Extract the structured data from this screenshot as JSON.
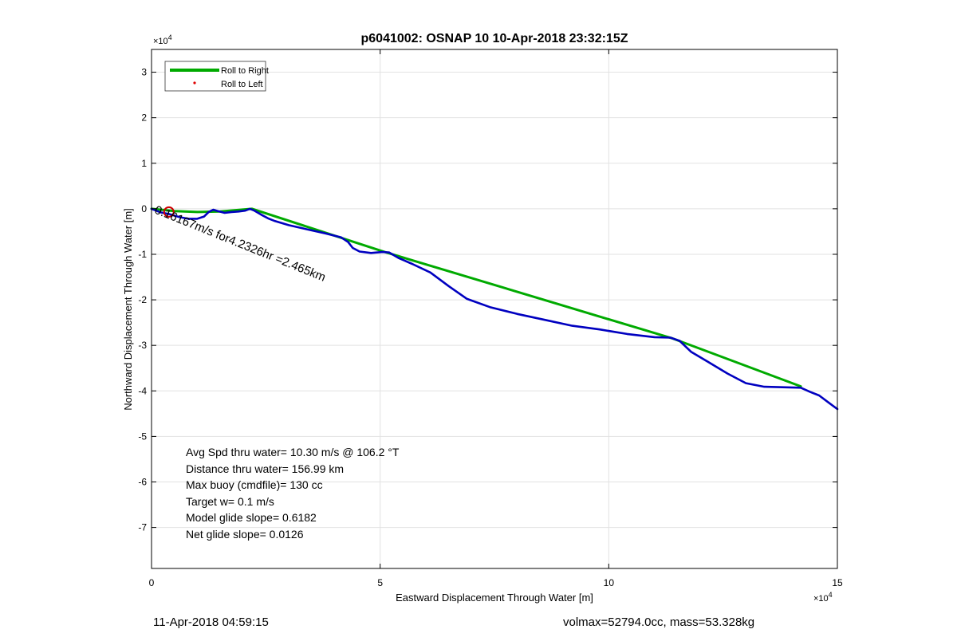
{
  "chart_data": {
    "type": "line",
    "title": "p6041002: OSNAP 10 10-Apr-2018 23:32:15Z",
    "xlabel": "Eastward Displacement Through Water [m]",
    "ylabel": "Northward Displacement Through Water [m]",
    "xlim": [
      0,
      150000
    ],
    "ylim": [
      -79000,
      35000
    ],
    "x_exponent_label": "×10",
    "x_exponent_power": "4",
    "y_exponent_label": "×10",
    "y_exponent_power": "4",
    "x_ticks": [
      {
        "value": 0,
        "label": "0"
      },
      {
        "value": 50000,
        "label": "5"
      },
      {
        "value": 100000,
        "label": "10"
      },
      {
        "value": 150000,
        "label": "15"
      }
    ],
    "y_ticks": [
      {
        "value": 30000,
        "label": "3"
      },
      {
        "value": 20000,
        "label": "2"
      },
      {
        "value": 10000,
        "label": "1"
      },
      {
        "value": 0,
        "label": "0"
      },
      {
        "value": -10000,
        "label": "-1"
      },
      {
        "value": -20000,
        "label": "-2"
      },
      {
        "value": -30000,
        "label": "-3"
      },
      {
        "value": -40000,
        "label": "-4"
      },
      {
        "value": -50000,
        "label": "-5"
      },
      {
        "value": -60000,
        "label": "-6"
      },
      {
        "value": -70000,
        "label": "-7"
      }
    ],
    "grid": true,
    "legend_position": "top-left",
    "legend": [
      {
        "label": "Roll to Right",
        "color": "#00aa00",
        "marker": "line"
      },
      {
        "label": "Roll to Left",
        "color": "#e00000",
        "marker": "dot"
      }
    ],
    "series": [
      {
        "color": "#00aa00",
        "points": [
          [
            0,
            0
          ],
          [
            5000,
            -500
          ],
          [
            10000,
            -700
          ],
          [
            15000,
            -600
          ],
          [
            22000,
            0
          ],
          [
            51000,
            -9500
          ],
          [
            114000,
            -28500
          ],
          [
            142000,
            -39000
          ]
        ]
      },
      {
        "color": "#0000c0",
        "points": [
          [
            0,
            0
          ],
          [
            2000,
            -800
          ],
          [
            4000,
            -1200
          ],
          [
            6000,
            -1800
          ],
          [
            8000,
            -2200
          ],
          [
            10000,
            -2200
          ],
          [
            11500,
            -1700
          ],
          [
            12500,
            -700
          ],
          [
            13500,
            -200
          ],
          [
            14500,
            -500
          ],
          [
            16000,
            -900
          ],
          [
            17500,
            -700
          ],
          [
            19000,
            -600
          ],
          [
            20500,
            -400
          ],
          [
            21500,
            0
          ],
          [
            22500,
            -400
          ],
          [
            24000,
            -1300
          ],
          [
            25500,
            -2100
          ],
          [
            27000,
            -2700
          ],
          [
            30000,
            -3600
          ],
          [
            34000,
            -4500
          ],
          [
            38000,
            -5400
          ],
          [
            41500,
            -6300
          ],
          [
            43000,
            -7300
          ],
          [
            44000,
            -8600
          ],
          [
            45500,
            -9400
          ],
          [
            48000,
            -9700
          ],
          [
            50500,
            -9500
          ],
          [
            52000,
            -9600
          ],
          [
            54000,
            -10800
          ],
          [
            57000,
            -12100
          ],
          [
            61000,
            -14000
          ],
          [
            65000,
            -17000
          ],
          [
            69000,
            -19800
          ],
          [
            74000,
            -21600
          ],
          [
            80000,
            -23100
          ],
          [
            86000,
            -24400
          ],
          [
            92000,
            -25700
          ],
          [
            98000,
            -26500
          ],
          [
            104000,
            -27500
          ],
          [
            110000,
            -28200
          ],
          [
            113500,
            -28300
          ],
          [
            115500,
            -29000
          ],
          [
            118000,
            -31400
          ],
          [
            122000,
            -33800
          ],
          [
            126000,
            -36200
          ],
          [
            130000,
            -38300
          ],
          [
            134000,
            -39100
          ],
          [
            138000,
            -39200
          ],
          [
            142000,
            -39300
          ],
          [
            144000,
            -40200
          ],
          [
            146000,
            -41000
          ],
          [
            148000,
            -42500
          ],
          [
            150000,
            -44000
          ]
        ]
      }
    ],
    "marker": {
      "x": 3800,
      "y": -700,
      "color": "#cc0000"
    },
    "current_annotation": {
      "text": "0.16167m/s for4.2326hr =2.465km",
      "x": 500,
      "y": -900,
      "angle": 22
    },
    "stats": [
      "Avg Spd thru water= 10.30 m/s @ 106.2 °T",
      "Distance thru water= 156.99 km",
      "Max buoy (cmdfile)= 130 cc",
      "Target w= 0.1 m/s",
      "Model glide slope= 0.6182",
      "Net glide slope= 0.0126"
    ]
  },
  "footer": {
    "left": "11-Apr-2018 04:59:15",
    "right": "volmax=52794.0cc, mass=53.328kg"
  }
}
